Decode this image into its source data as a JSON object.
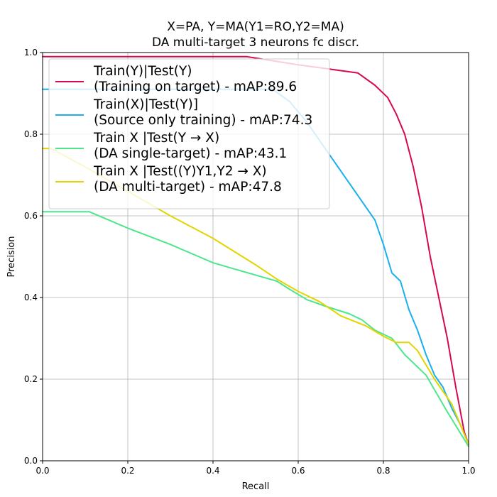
{
  "chart_data": {
    "type": "line",
    "title_lines": [
      "X=PA, Y=MA(Y1=RO,Y2=MA)",
      "DA multi-target 3 neurons fc discr."
    ],
    "xlabel": "Recall",
    "ylabel": "Precision",
    "xlim": [
      0,
      1
    ],
    "ylim": [
      0,
      1
    ],
    "xticks": [
      "0.0",
      "0.2",
      "0.4",
      "0.6",
      "0.8",
      "1.0"
    ],
    "yticks": [
      "0.0",
      "0.2",
      "0.4",
      "0.6",
      "0.8",
      "1.0"
    ],
    "grid": true,
    "legend_position": "top-left",
    "series": [
      {
        "name": "Train(Y)|Test(Y)",
        "name_line2": "(Training on target) - mAP:89.6",
        "color": "#d6084f",
        "x": [
          0,
          0.48,
          0.6,
          0.74,
          0.78,
          0.81,
          0.83,
          0.85,
          0.87,
          0.89,
          0.91,
          0.93,
          0.95,
          0.97,
          0.99,
          1.0
        ],
        "y": [
          0.99,
          0.99,
          0.97,
          0.95,
          0.92,
          0.89,
          0.85,
          0.8,
          0.72,
          0.62,
          0.5,
          0.4,
          0.3,
          0.18,
          0.07,
          0.04
        ]
      },
      {
        "name": "Train(X)|Test(Y)]",
        "name_line2": "(Source only training) - mAP:74.3",
        "color": "#1ab0ee",
        "x": [
          0,
          0.54,
          0.58,
          0.62,
          0.66,
          0.7,
          0.74,
          0.78,
          0.8,
          0.82,
          0.84,
          0.86,
          0.88,
          0.9,
          0.92,
          0.94,
          0.96,
          0.98,
          1.0
        ],
        "y": [
          0.91,
          0.91,
          0.88,
          0.83,
          0.77,
          0.71,
          0.65,
          0.59,
          0.53,
          0.46,
          0.44,
          0.37,
          0.32,
          0.26,
          0.21,
          0.18,
          0.13,
          0.09,
          0.04
        ]
      },
      {
        "name": "Train X |Test(Y → X)",
        "name_line2": "(DA single-target) - mAP:43.1",
        "color": "#4ee68c",
        "x": [
          0,
          0.11,
          0.2,
          0.3,
          0.4,
          0.45,
          0.5,
          0.55,
          0.58,
          0.62,
          0.66,
          0.72,
          0.75,
          0.78,
          0.82,
          0.85,
          0.9,
          0.95,
          1.0
        ],
        "y": [
          0.61,
          0.61,
          0.57,
          0.53,
          0.485,
          0.47,
          0.455,
          0.44,
          0.42,
          0.395,
          0.38,
          0.36,
          0.345,
          0.32,
          0.3,
          0.26,
          0.21,
          0.12,
          0.035
        ]
      },
      {
        "name": "Train X |Test((Y)Y1,Y2 → X)",
        "name_line2": "(DA multi-target) - mAP:47.8",
        "color": "#e3d400",
        "x": [
          0,
          0.02,
          0.1,
          0.2,
          0.3,
          0.4,
          0.5,
          0.55,
          0.6,
          0.65,
          0.7,
          0.76,
          0.8,
          0.83,
          0.86,
          0.88,
          0.92,
          0.96,
          1.0
        ],
        "y": [
          0.765,
          0.765,
          0.72,
          0.66,
          0.6,
          0.545,
          0.48,
          0.445,
          0.415,
          0.39,
          0.355,
          0.33,
          0.305,
          0.29,
          0.29,
          0.27,
          0.2,
          0.14,
          0.04
        ]
      }
    ]
  }
}
